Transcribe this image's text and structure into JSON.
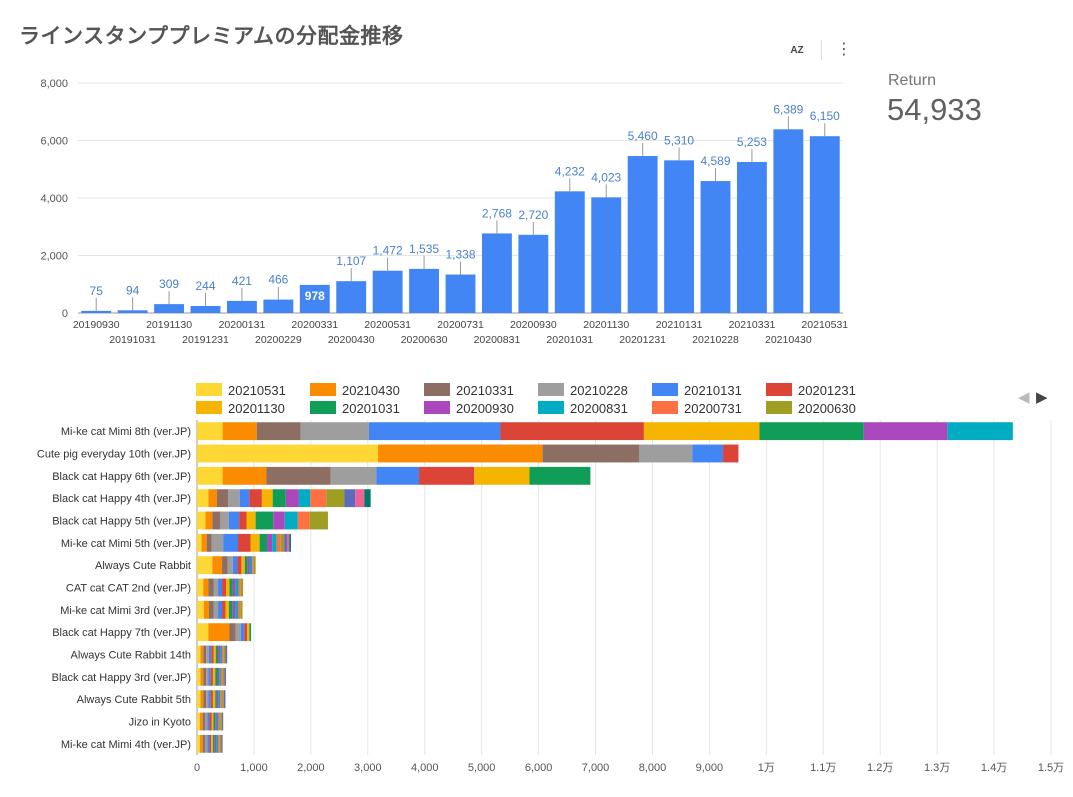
{
  "title": "ラインスタンププレミアムの分配金推移",
  "toolbar": {
    "sort_label": "AZ",
    "more_label": "⋮"
  },
  "scorecard": {
    "label": "Return",
    "value": "54,933"
  },
  "pager": {
    "prev": "◀",
    "next": "▶"
  },
  "chart_data": [
    {
      "type": "bar",
      "title": "",
      "ylim": [
        0,
        8000
      ],
      "yticks": [
        "0",
        "2,000",
        "4,000",
        "6,000",
        "8,000"
      ],
      "bar_color": "#4285f4",
      "categories": [
        "20190930",
        "20191031",
        "20191130",
        "20191231",
        "20200131",
        "20200229",
        "20200331",
        "20200430",
        "20200531",
        "20200630",
        "20200731",
        "20200831",
        "20200930",
        "20201031",
        "20201130",
        "20201231",
        "20210131",
        "20210228",
        "20210331",
        "20210430",
        "20210531"
      ],
      "values": [
        75,
        94,
        309,
        244,
        421,
        466,
        978,
        1107,
        1472,
        1535,
        1338,
        2768,
        2720,
        4232,
        4023,
        5460,
        5310,
        4589,
        5253,
        6389,
        6150
      ],
      "value_labels": [
        "75",
        "94",
        "309",
        "244",
        "421",
        "466",
        "978",
        "1,107",
        "1,472",
        "1,535",
        "1,338",
        "2,768",
        "2,720",
        "4,232",
        "4,023",
        "5,460",
        "5,310",
        "4,589",
        "5,253",
        "6,389",
        "6,150"
      ]
    },
    {
      "type": "stacked-horizontal-bar",
      "xlim": [
        0,
        15000
      ],
      "xticks": [
        "0",
        "1,000",
        "2,000",
        "3,000",
        "4,000",
        "5,000",
        "6,000",
        "7,000",
        "8,000",
        "9,000",
        "1万",
        "1.1万",
        "1.2万",
        "1.3万",
        "1.4万",
        "1.5万"
      ],
      "legend_position": "top",
      "legend": [
        {
          "name": "20210531",
          "color": "#fdd835"
        },
        {
          "name": "20210430",
          "color": "#fb8c00"
        },
        {
          "name": "20210331",
          "color": "#8d6e63"
        },
        {
          "name": "20210228",
          "color": "#9e9e9e"
        },
        {
          "name": "20210131",
          "color": "#4285f4"
        },
        {
          "name": "20201231",
          "color": "#db4437"
        },
        {
          "name": "20201130",
          "color": "#f4b400"
        },
        {
          "name": "20201031",
          "color": "#0f9d58"
        },
        {
          "name": "20200930",
          "color": "#ab47bc"
        },
        {
          "name": "20200831",
          "color": "#00acc1"
        },
        {
          "name": "20200731",
          "color": "#ff7043"
        },
        {
          "name": "20200630",
          "color": "#9e9d24"
        }
      ],
      "palette_rest": [
        "#5c6bc0",
        "#f06292",
        "#00796b",
        "#c2185b"
      ],
      "categories": [
        "Mi-ke cat Mimi 8th (ver.JP)",
        "Cute pig everyday 10th (ver.JP)",
        "Black cat Happy 6th (ver.JP)",
        "Black cat Happy 4th (ver.JP)",
        "Black cat Happy 5th (ver.JP)",
        "Mi-ke cat Mimi 5th (ver.JP)",
        "Always Cute Rabbit",
        "CAT cat CAT 2nd (ver.JP)",
        "Mi-ke cat Mimi 3rd (ver.JP)",
        "Black cat Happy 7th (ver.JP)",
        "Always Cute Rabbit 14th",
        "Black cat Happy 3rd (ver.JP)",
        "Always Cute Rabbit 5th",
        "Jizo in Kyoto",
        "Mi-ke cat Mimi 4th (ver.JP)"
      ],
      "segments": [
        [
          450,
          600,
          770,
          1200,
          2310,
          2520,
          2030,
          1830,
          1470,
          1150
        ],
        [
          3180,
          2890,
          1700,
          930,
          540,
          270
        ],
        [
          450,
          770,
          1130,
          800,
          750,
          970,
          970,
          1070
        ],
        [
          200,
          150,
          200,
          200,
          170,
          220,
          190,
          230,
          230,
          200,
          280,
          320,
          190,
          160,
          110
        ],
        [
          150,
          120,
          140,
          150,
          180,
          130,
          160,
          310,
          200,
          230,
          210,
          320
        ],
        [
          80,
          90,
          90,
          200,
          260,
          220,
          160,
          130,
          90,
          80,
          70,
          60,
          50,
          40,
          30
        ],
        [
          270,
          170,
          100,
          90,
          80,
          70,
          60,
          50,
          40,
          40,
          30,
          30
        ],
        [
          110,
          90,
          90,
          80,
          70,
          70,
          60,
          60,
          50,
          50,
          40,
          40
        ],
        [
          120,
          90,
          80,
          80,
          70,
          60,
          60,
          60,
          50,
          50,
          40,
          40
        ],
        [
          200,
          370,
          110,
          90,
          60,
          50,
          40,
          30
        ],
        [
          60,
          50,
          50,
          50,
          40,
          40,
          40,
          40,
          40,
          30,
          30,
          30,
          30
        ],
        [
          60,
          50,
          50,
          40,
          40,
          40,
          40,
          40,
          30,
          30,
          30,
          30,
          30
        ],
        [
          60,
          50,
          50,
          40,
          40,
          40,
          40,
          30,
          30,
          30,
          30,
          30,
          30
        ],
        [
          50,
          50,
          40,
          40,
          40,
          40,
          30,
          30,
          30,
          30,
          30,
          30,
          20
        ],
        [
          50,
          50,
          40,
          40,
          40,
          30,
          30,
          30,
          30,
          30,
          30,
          30,
          20
        ]
      ]
    }
  ]
}
